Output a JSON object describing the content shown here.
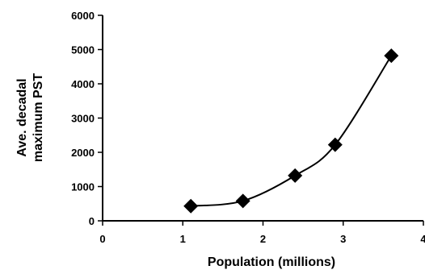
{
  "chart_data": {
    "type": "scatter",
    "title": "",
    "xlabel": "Population (millions)",
    "ylabel_lines": [
      "Ave. decadal",
      "maximum PST"
    ],
    "xlim": [
      0,
      4
    ],
    "ylim": [
      0,
      6000
    ],
    "x_ticks": [
      0,
      1,
      2,
      3,
      4
    ],
    "y_ticks": [
      0,
      1000,
      2000,
      3000,
      4000,
      5000,
      6000
    ],
    "x_tick_labels": [
      "0",
      "1",
      "2",
      "3",
      "4"
    ],
    "y_tick_labels": [
      "0",
      "1000",
      "2000",
      "3000",
      "4000",
      "5000",
      "6000"
    ],
    "grid": false,
    "legend": "none",
    "series": [
      {
        "marker": "diamond",
        "trend_line": "smooth",
        "color": "#000000",
        "x": [
          1.1,
          1.75,
          2.4,
          2.9,
          3.6
        ],
        "y": [
          430,
          580,
          1320,
          2220,
          4820
        ]
      }
    ]
  }
}
